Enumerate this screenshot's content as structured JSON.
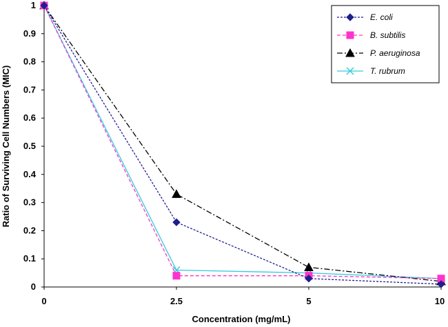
{
  "chart_data": {
    "type": "line",
    "title": "",
    "xlabel": "Concentration (mg/mL)",
    "ylabel": "Ratio of Surviving Cell Numbers (MIC)",
    "x": [
      0,
      2.5,
      5,
      10
    ],
    "x_tick_labels": [
      "0",
      "2.5",
      "5",
      "10"
    ],
    "y_tick_labels": [
      "0",
      "0.1",
      "0.2",
      "0.3",
      "0.4",
      "0.5",
      "0.6",
      "0.7",
      "0.8",
      "0.9",
      "1"
    ],
    "ylim": [
      0,
      1
    ],
    "grid": false,
    "legend_position": "top-right",
    "series": [
      {
        "name": "E. coli",
        "values": [
          1,
          0.23,
          0.03,
          0.01
        ],
        "color": "#1f1f8f",
        "marker": "diamond",
        "dash": "3,2"
      },
      {
        "name": "B. subtilis",
        "values": [
          1,
          0.04,
          0.04,
          0.03
        ],
        "color": "#ff33cc",
        "marker": "square",
        "dash": "5,3"
      },
      {
        "name": "P. aeruginosa",
        "values": [
          1,
          0.33,
          0.07,
          0.02
        ],
        "color": "#000000",
        "marker": "triangle",
        "dash": "8,3,2,3"
      },
      {
        "name": "T. rubrum",
        "values": [
          1,
          0.06,
          0.05,
          0.03
        ],
        "color": "#33ccdd",
        "marker": "x",
        "dash": ""
      }
    ]
  }
}
